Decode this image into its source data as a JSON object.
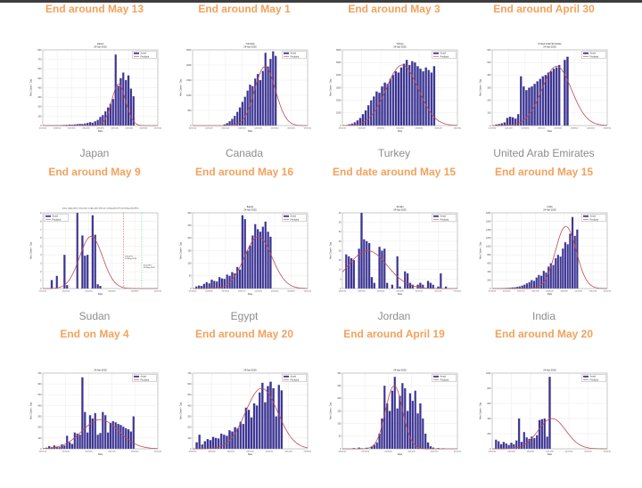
{
  "page": {
    "top_strip_color": "#3d3d3d",
    "background": "#ffffff"
  },
  "colors": {
    "header_orange": "#F2A25C",
    "country_gray": "#8c8c8c",
    "bar": "#3B3490",
    "bar_edge": "#7A74C0",
    "curve_red": "#C04A52",
    "grid": "#E3E3E3",
    "frame": "#888888",
    "tick_text": "#444444",
    "vline_red": "#E06A6A",
    "vline_green": "#7ED896"
  },
  "legend": {
    "actual": "Actual",
    "predicted": "Predicted"
  },
  "axis": {
    "ylabel": "New Cases - Day",
    "xlabel": "Date"
  },
  "chart_data": [
    {
      "type": "bar",
      "header": "End around May 13",
      "country": "Japan",
      "title_line1": "Japan",
      "title_line2": "24-Apr-2020",
      "ylim": [
        0,
        800
      ],
      "yticks": [
        0,
        100,
        200,
        300,
        400,
        500,
        600,
        700,
        800
      ],
      "xticks": [
        "01/22/20",
        "02/05/20",
        "02/19/20",
        "03/04/20",
        "03/18/20",
        "04/01/20",
        "04/15/20",
        "04/29/20",
        "05/13/20"
      ],
      "slots": 45,
      "bars": [
        2,
        1,
        2,
        3,
        2,
        4,
        3,
        5,
        6,
        8,
        10,
        9,
        12,
        15,
        18,
        16,
        22,
        28,
        35,
        30,
        45,
        60,
        90,
        110,
        150,
        190,
        230,
        280,
        750,
        420,
        500,
        560,
        480,
        530,
        390,
        310
      ],
      "curve": {
        "peak": 440,
        "center": 0.66,
        "sigma": 0.06
      },
      "legend_pos": "tr"
    },
    {
      "type": "bar",
      "header": "End around May 1",
      "country": "Canada",
      "title_line1": "Canada",
      "title_line2": "24-Apr-2020",
      "ylim": [
        0,
        2500
      ],
      "yticks": [
        0,
        500,
        1000,
        1500,
        2000,
        2500
      ],
      "xticks": [
        "02/01/20",
        "02/15/20",
        "03/01/20",
        "03/15/20",
        "04/01/20",
        "04/15/20",
        "05/01/20",
        "05/15/20"
      ],
      "slots": 45,
      "bars": [
        0,
        0,
        0,
        0,
        0,
        0,
        0,
        0,
        0,
        0,
        0,
        0,
        40,
        80,
        140,
        220,
        320,
        450,
        600,
        780,
        950,
        1150,
        1350,
        1300,
        1550,
        1700,
        1500,
        1800,
        2400,
        1950,
        2200,
        2450,
        2300
      ],
      "curve": {
        "peak": 1950,
        "center": 0.63,
        "sigma": 0.09
      },
      "legend_pos": "tr"
    },
    {
      "type": "bar",
      "header": "End around May 3",
      "country": "Turkey",
      "title_line1": "Turkey",
      "title_line2": "24-Apr-2020",
      "ylim": [
        0,
        6000
      ],
      "yticks": [
        0,
        1000,
        2000,
        3000,
        4000,
        5000,
        6000
      ],
      "xticks": [
        "03/11/20",
        "03/25/20",
        "04/08/20",
        "04/22/20",
        "05/06/20",
        "05/20/20",
        "06/03/20"
      ],
      "slots": 42,
      "bars": [
        0,
        0,
        100,
        150,
        250,
        400,
        600,
        900,
        1200,
        1600,
        2000,
        2300,
        2700,
        2600,
        3100,
        3400,
        3300,
        3700,
        4000,
        4300,
        4200,
        4600,
        4900,
        5200,
        4800,
        5100,
        5000,
        4700,
        4500,
        4300,
        4600,
        4400,
        4200,
        4700
      ],
      "curve": {
        "peak": 4800,
        "center": 0.52,
        "sigma": 0.14
      },
      "legend_pos": "tr"
    },
    {
      "type": "bar",
      "header": "End around April 30",
      "country": "United Arab Emirates",
      "title_line1": "United Arab Emirates",
      "title_line2": "24-Apr-2020",
      "ylim": [
        0,
        600
      ],
      "yticks": [
        0,
        100,
        200,
        300,
        400,
        500,
        600
      ],
      "xticks": [
        "01/29/20",
        "02/12/20",
        "02/26/20",
        "03/11/20",
        "03/25/20",
        "04/08/20",
        "04/22/20",
        "05/06/20"
      ],
      "slots": 42,
      "bars": [
        0,
        8,
        12,
        18,
        25,
        60,
        70,
        65,
        55,
        90,
        390,
        310,
        280,
        300,
        310,
        330,
        350,
        370,
        390,
        400,
        420,
        430,
        450,
        460,
        480,
        0,
        520,
        545
      ],
      "curve": {
        "peak": 470,
        "center": 0.56,
        "sigma": 0.13
      },
      "legend_pos": "tr"
    },
    {
      "type": "bar",
      "header": "End around May 9",
      "country": "Sudan",
      "title_line1": "Today: 24-Apr-2020; Turning Date: 22-Apr-2020; End Date: 02-May-2020 (97%) & 09-May-2020 (99%)",
      "title_line2": "",
      "title_small": true,
      "ylim": [
        0,
        9
      ],
      "yticks": [
        0,
        1,
        2,
        3,
        4,
        5,
        6,
        7,
        8,
        9
      ],
      "xticks": [
        "03/13/20",
        "03/27/20",
        "04/10/20",
        "04/24/20",
        "05/08/20",
        "05/22/20"
      ],
      "slots": 45,
      "bars": [
        0,
        0,
        0,
        1,
        0,
        1.5,
        0,
        0,
        4,
        0.4,
        0,
        0,
        0,
        9,
        0,
        6.3,
        3.9,
        4,
        0,
        8.7,
        6.4,
        0.5,
        0.3
      ],
      "curve": {
        "peak": 6.2,
        "center": 0.42,
        "sigma": 0.1
      },
      "legend_pos": "tl",
      "vlines": [
        {
          "pos": 0.7,
          "color_key": "vline_red"
        },
        {
          "pos": 0.86,
          "color_key": "vline_green"
        }
      ],
      "annotations": [
        {
          "x": 0.715,
          "y": 0.58,
          "lines": [
            "End-97%:",
            "02-May-2020"
          ]
        },
        {
          "x": 0.875,
          "y": 0.7,
          "lines": [
            "End-99%:",
            "09-May-2020"
          ]
        }
      ]
    },
    {
      "type": "bar",
      "header": "End around May 16",
      "country": "Egypt",
      "title_line1": "Egypt",
      "title_line2": "24-Apr-2020",
      "ylim": [
        0,
        300
      ],
      "yticks": [
        0,
        50,
        100,
        150,
        200,
        250,
        300
      ],
      "xticks": [
        "02/14/20",
        "02/28/20",
        "03/13/20",
        "03/27/20",
        "04/10/20",
        "04/24/20",
        "05/08/20",
        "05/22/20"
      ],
      "slots": 45,
      "bars": [
        0,
        8,
        12,
        10,
        18,
        25,
        20,
        35,
        30,
        28,
        45,
        40,
        38,
        55,
        50,
        65,
        60,
        85,
        75,
        290,
        275,
        150,
        170,
        210,
        255,
        235,
        225,
        245,
        265,
        225,
        205
      ],
      "curve": {
        "peak": 205,
        "center": 0.57,
        "sigma": 0.12
      },
      "legend_pos": "tr"
    },
    {
      "type": "bar",
      "header": "End date around May 15",
      "country": "Jordan",
      "title_line1": "Jordan",
      "title_line2": "24-Apr-2020",
      "ylim": [
        0,
        40
      ],
      "yticks": [
        0,
        5,
        10,
        15,
        20,
        25,
        30,
        35,
        40
      ],
      "xticks": [
        "03/02/20",
        "03/16/20",
        "03/30/20",
        "04/13/20",
        "04/27/20",
        "05/11/20",
        "05/25/20"
      ],
      "slots": 45,
      "bars": [
        0,
        18,
        17,
        16,
        15,
        0,
        21,
        40,
        26,
        25,
        24,
        6,
        3,
        0,
        22,
        20,
        21,
        3,
        0,
        2,
        0,
        17,
        1,
        0,
        9,
        8,
        3,
        2,
        0,
        2,
        3,
        2,
        0,
        4,
        3,
        2,
        0,
        1,
        8,
        0,
        1
      ],
      "curve": {
        "peak": 20,
        "center": 0.22,
        "sigma": 0.17
      },
      "legend_pos": "tr"
    },
    {
      "type": "bar",
      "header": "End around May 15",
      "country": "India",
      "title_line1": "India",
      "title_line2": "24-Apr-2020",
      "ylim": [
        0,
        1800
      ],
      "yticks": [
        0,
        200,
        400,
        600,
        800,
        1000,
        1200,
        1400,
        1600,
        1800
      ],
      "xticks": [
        "01/30/20",
        "02/13/20",
        "02/27/20",
        "03/12/20",
        "03/26/20",
        "04/09/20",
        "04/23/20",
        "05/07/20",
        "05/21/20"
      ],
      "slots": 48,
      "bars": [
        0,
        0,
        5,
        8,
        10,
        12,
        15,
        20,
        25,
        30,
        40,
        50,
        70,
        90,
        120,
        150,
        200,
        180,
        260,
        320,
        300,
        420,
        380,
        520,
        600,
        560,
        720,
        800,
        760,
        950,
        1100,
        1050,
        1300,
        1700,
        1250,
        1400
      ],
      "curve": {
        "peak": 1480,
        "center": 0.64,
        "sigma": 0.09
      },
      "legend_pos": "tr"
    },
    {
      "type": "bar",
      "header": "End on May 4",
      "country": "",
      "title_line1": "",
      "title_line2": "24-Apr-2020",
      "ylim": [
        0,
        700
      ],
      "yticks": [
        0,
        100,
        200,
        300,
        400,
        500,
        600,
        700
      ],
      "xticks": [
        "03/01/20",
        "03/15/20",
        "03/29/20",
        "04/12/20",
        "04/26/20",
        "05/10/20"
      ],
      "slots": 45,
      "bars": [
        0,
        10,
        25,
        15,
        30,
        20,
        15,
        40,
        30,
        120,
        60,
        45,
        150,
        140,
        130,
        660,
        340,
        150,
        310,
        280,
        330,
        130,
        145,
        340,
        310,
        150,
        240,
        255,
        245,
        230,
        220,
        205,
        190,
        180,
        160,
        300
      ],
      "curve": {
        "peak": 270,
        "center": 0.5,
        "sigma": 0.16
      },
      "legend_pos": "tr"
    },
    {
      "type": "bar",
      "header": "End around May 20",
      "country": "",
      "title_line1": "",
      "title_line2": "24-Apr-2020",
      "ylim": [
        0,
        700
      ],
      "yticks": [
        0,
        100,
        200,
        300,
        400,
        500,
        600,
        700
      ],
      "xticks": [
        "03/05/20",
        "03/19/20",
        "04/02/20",
        "04/16/20",
        "04/30/20",
        "05/14/20",
        "05/28/20"
      ],
      "slots": 42,
      "bars": [
        0,
        60,
        130,
        40,
        70,
        90,
        80,
        110,
        100,
        95,
        140,
        130,
        120,
        170,
        160,
        200,
        190,
        250,
        230,
        380,
        360,
        290,
        420,
        400,
        520,
        610,
        430,
        580,
        620,
        560,
        300,
        590,
        540
      ],
      "curve": {
        "peak": 560,
        "center": 0.6,
        "sigma": 0.14
      },
      "legend_pos": "tr"
    },
    {
      "type": "bar",
      "header": "End around April 19",
      "country": "",
      "title_line1": "",
      "title_line2": "24-Apr-2020",
      "ylim": [
        0,
        300
      ],
      "yticks": [
        0,
        50,
        100,
        150,
        200,
        250,
        300
      ],
      "xticks": [
        "03/02/20",
        "03/16/20",
        "03/30/20",
        "04/13/20",
        "04/27/20",
        "05/11/20"
      ],
      "slots": 45,
      "bars": [
        0,
        0,
        0,
        0,
        3,
        0,
        5,
        2,
        0,
        4,
        0,
        8,
        15,
        25,
        60,
        120,
        250,
        180,
        150,
        230,
        285,
        160,
        210,
        260,
        240,
        150,
        220,
        190,
        230,
        140,
        180,
        120,
        60,
        25,
        10,
        5,
        0,
        3,
        0,
        2
      ],
      "curve": {
        "peak": 250,
        "center": 0.45,
        "sigma": 0.075
      },
      "legend_pos": "tr"
    },
    {
      "type": "bar",
      "header": "End around May 20",
      "country": "",
      "title_line1": "",
      "title_line2": "24-Apr-2020",
      "ylim": [
        0,
        1000
      ],
      "yticks": [
        0,
        200,
        400,
        600,
        800,
        1000
      ],
      "xticks": [
        "03/02/20",
        "03/16/20",
        "03/30/20",
        "04/13/20",
        "04/27/20",
        "05/11/20",
        "05/25/20"
      ],
      "slots": 45,
      "bars": [
        0,
        120,
        100,
        60,
        90,
        70,
        50,
        80,
        60,
        110,
        400,
        90,
        220,
        150,
        130,
        160,
        140,
        180,
        380,
        390,
        400,
        160,
        950
      ],
      "curve": {
        "peak": 400,
        "center": 0.52,
        "sigma": 0.12
      },
      "legend_pos": "tr"
    }
  ]
}
